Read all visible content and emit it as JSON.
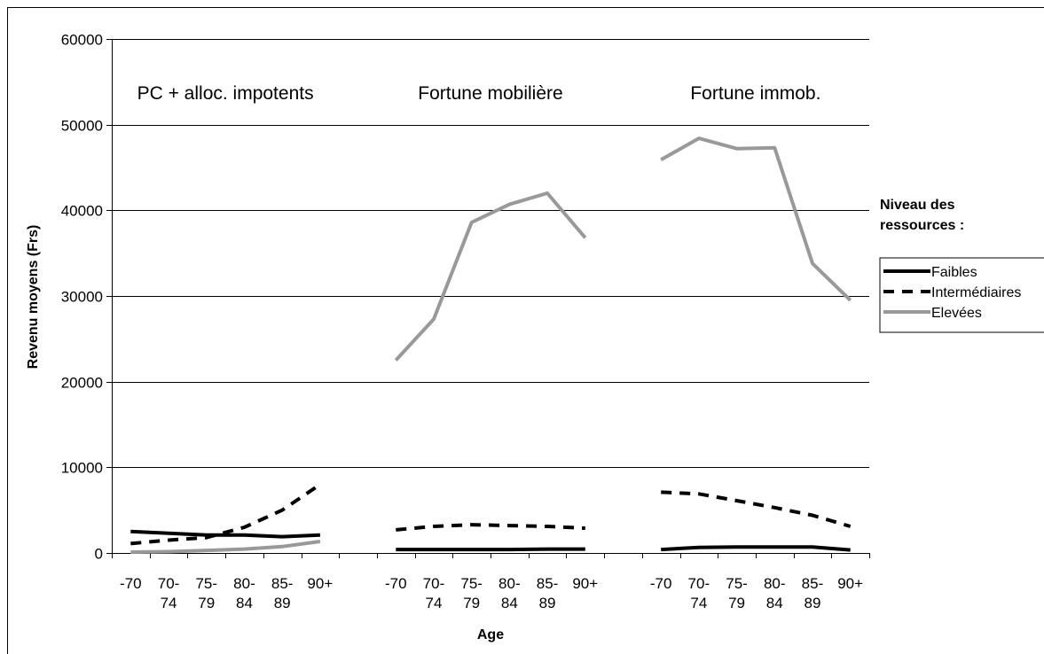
{
  "chart_data": {
    "type": "line",
    "title": "",
    "xlabel": "Age",
    "ylabel": "Revenu moyens (Frs)",
    "ylim": [
      0,
      60000
    ],
    "yticks": [
      "0",
      "10000",
      "20000",
      "30000",
      "40000",
      "50000",
      "60000"
    ],
    "categories": [
      {
        "line1": "-70",
        "line2": ""
      },
      {
        "line1": "70-",
        "line2": "74"
      },
      {
        "line1": "75-",
        "line2": "79"
      },
      {
        "line1": "80-",
        "line2": "84"
      },
      {
        "line1": "85-",
        "line2": "89"
      },
      {
        "line1": "90+",
        "line2": ""
      }
    ],
    "grid": true,
    "legend": {
      "title_line1": "Niveau des",
      "title_line2": "ressources :",
      "position": "right",
      "entries": [
        "Faibles",
        "Intermédiaires",
        "Elevées"
      ]
    },
    "series_styles": [
      {
        "name": "Faibles",
        "color": "#000000",
        "dash": "solid"
      },
      {
        "name": "Intermédiaires",
        "color": "#000000",
        "dash": "dashed"
      },
      {
        "name": "Elevées",
        "color": "#999999",
        "dash": "solid"
      }
    ],
    "panels": [
      {
        "title": "PC + alloc. impotents",
        "series": [
          {
            "name": "Faibles",
            "values": [
              2500,
              2300,
              2100,
              2100,
              1900,
              2100
            ]
          },
          {
            "name": "Intermédiaires",
            "values": [
              1100,
              1500,
              1800,
              3000,
              5000,
              8000
            ]
          },
          {
            "name": "Elevées",
            "values": [
              100,
              150,
              300,
              450,
              750,
              1350
            ]
          }
        ]
      },
      {
        "title": "Fortune mobilière",
        "series": [
          {
            "name": "Faibles",
            "values": [
              400,
              400,
              400,
              400,
              450,
              450
            ]
          },
          {
            "name": "Intermédiaires",
            "values": [
              2700,
              3100,
              3300,
              3200,
              3100,
              2900
            ]
          },
          {
            "name": "Elevées",
            "values": [
              22500,
              27300,
              38600,
              40700,
              42000,
              36800
            ]
          }
        ]
      },
      {
        "title": "Fortune immob.",
        "series": [
          {
            "name": "Faibles",
            "values": [
              400,
              650,
              700,
              700,
              700,
              350
            ]
          },
          {
            "name": "Intermédiaires",
            "values": [
              7100,
              6900,
              6100,
              5300,
              4400,
              3100
            ]
          },
          {
            "name": "Elevées",
            "values": [
              45900,
              48400,
              47200,
              47300,
              33800,
              29500
            ]
          }
        ]
      }
    ]
  }
}
